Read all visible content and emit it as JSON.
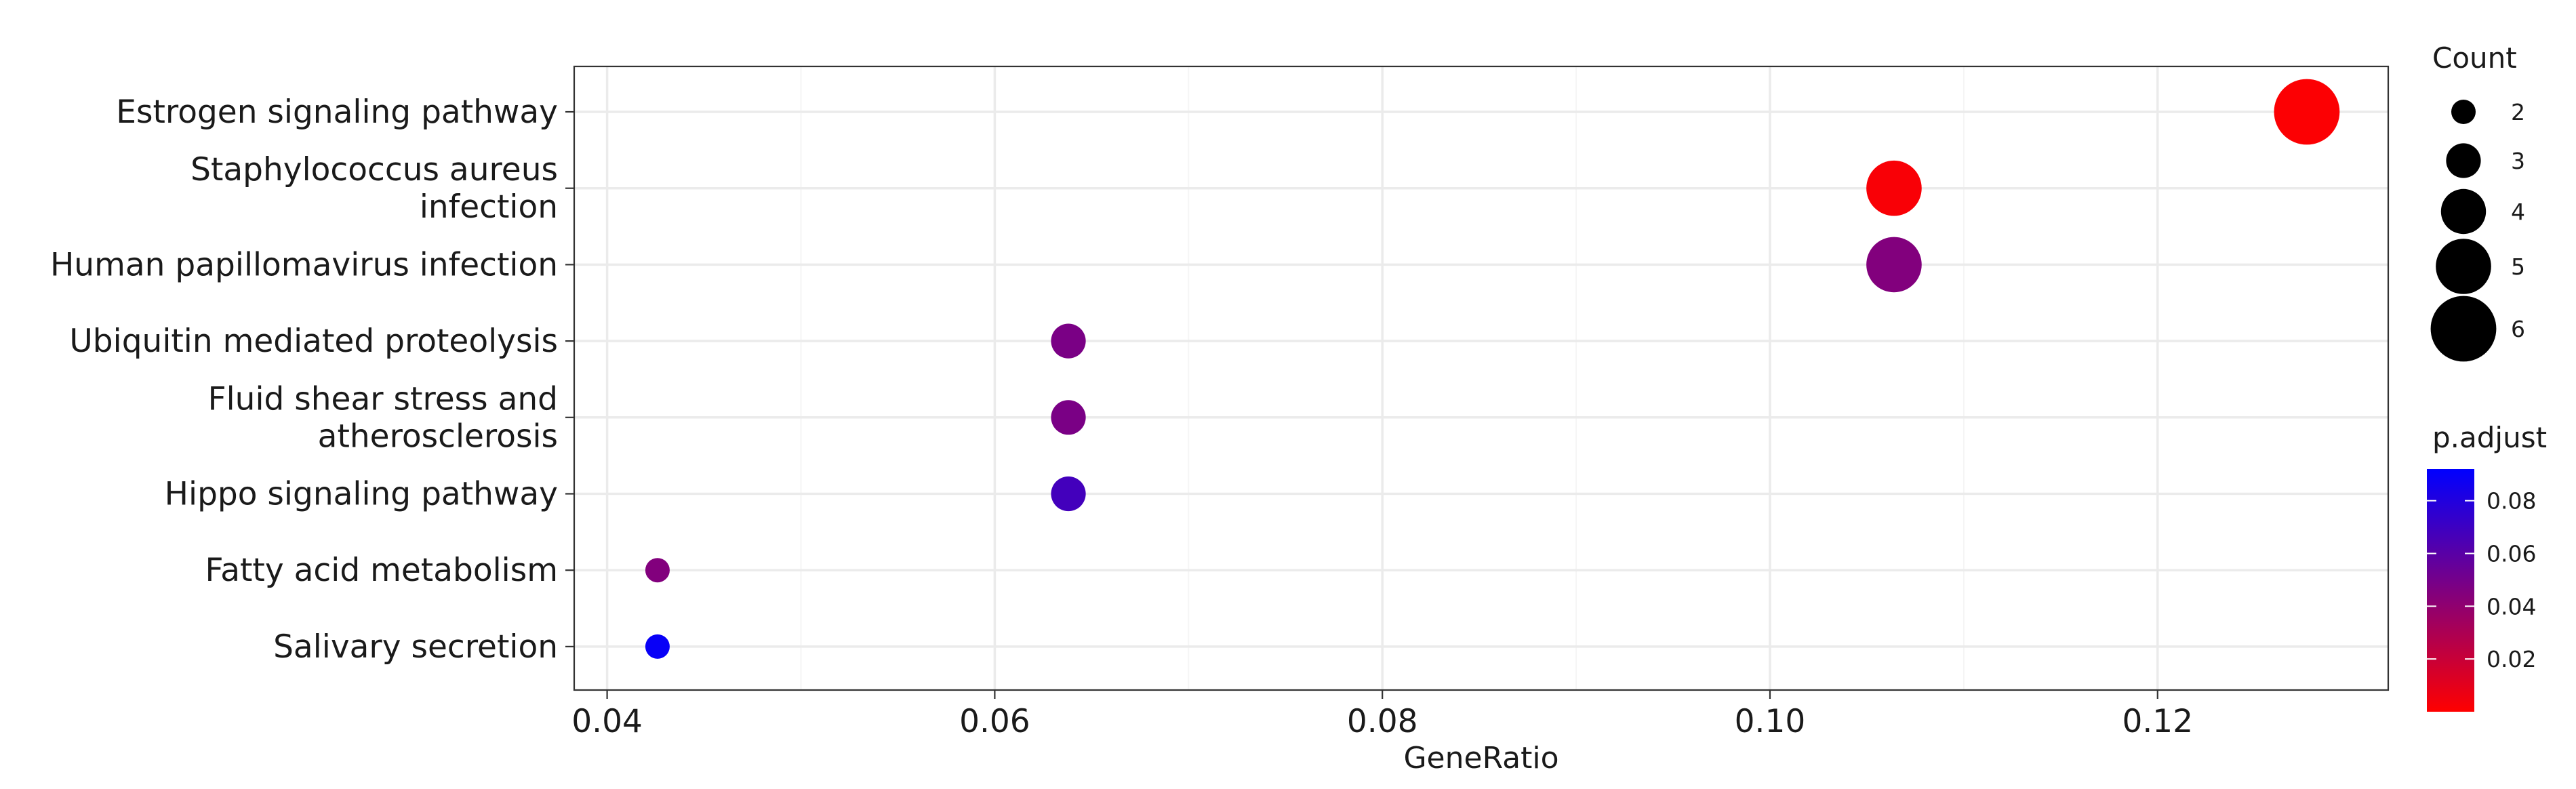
{
  "chart_data": {
    "type": "scatter",
    "title": "",
    "xlabel": "GeneRatio",
    "ylabel": "",
    "xlim": [
      0.0383,
      0.1319
    ],
    "x_ticks": [
      "0.04",
      "0.06",
      "0.08",
      "0.10",
      "0.12"
    ],
    "x_tick_values": [
      0.04,
      0.06,
      0.08,
      0.1,
      0.12
    ],
    "grid": true,
    "categories": [
      [
        "Estrogen signaling pathway"
      ],
      [
        "Staphylococcus aureus",
        "infection"
      ],
      [
        "Human papillomavirus infection"
      ],
      [
        "Ubiquitin mediated proteolysis"
      ],
      [
        "Fluid shear stress and",
        "atherosclerosis"
      ],
      [
        "Hippo signaling pathway"
      ],
      [
        "Fatty acid metabolism"
      ],
      [
        "Salivary secretion"
      ]
    ],
    "points": [
      {
        "gene_ratio": 0.1277,
        "count": 6,
        "p_adjust": 0.001
      },
      {
        "gene_ratio": 0.1064,
        "count": 5,
        "p_adjust": 0.002
      },
      {
        "gene_ratio": 0.1064,
        "count": 5,
        "p_adjust": 0.045
      },
      {
        "gene_ratio": 0.0638,
        "count": 3,
        "p_adjust": 0.048
      },
      {
        "gene_ratio": 0.0638,
        "count": 3,
        "p_adjust": 0.048
      },
      {
        "gene_ratio": 0.0638,
        "count": 3,
        "p_adjust": 0.068
      },
      {
        "gene_ratio": 0.0426,
        "count": 2,
        "p_adjust": 0.045
      },
      {
        "gene_ratio": 0.0426,
        "count": 2,
        "p_adjust": 0.089
      }
    ],
    "size_legend": {
      "title": "Count",
      "values": [
        2,
        3,
        4,
        5,
        6
      ],
      "labels": [
        "2",
        "3",
        "4",
        "5",
        "6"
      ],
      "position": "right"
    },
    "color_legend": {
      "title": "p.adjust",
      "ticks": [
        0.08,
        0.06,
        0.04,
        0.02
      ],
      "tick_labels": [
        "0.08",
        "0.06",
        "0.04",
        "0.02"
      ],
      "range": [
        0.0,
        0.092
      ],
      "low_color": "#ff0000",
      "high_color": "#0000ff",
      "position": "right"
    },
    "colors": {
      "panel_border": "#333333",
      "grid_major": "#ebebeb",
      "grid_minor": "#f5f5f5",
      "text": "#1a1a1a",
      "point_legend": "#000000"
    }
  }
}
